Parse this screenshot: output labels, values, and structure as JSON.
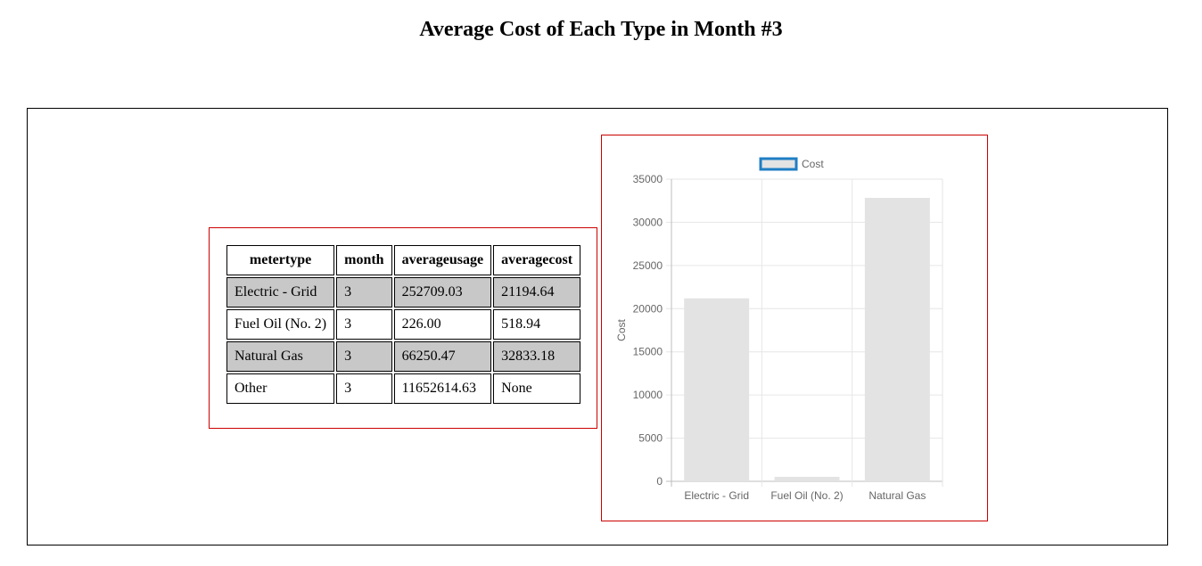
{
  "page": {
    "title": "Average Cost of Each Type in Month #3"
  },
  "table": {
    "columns": [
      "metertype",
      "month",
      "averageusage",
      "averagecost"
    ],
    "rows": [
      [
        "Electric - Grid",
        "3",
        "252709.03",
        "21194.64"
      ],
      [
        "Fuel Oil (No. 2)",
        "3",
        "226.00",
        "518.94"
      ],
      [
        "Natural Gas",
        "3",
        "66250.47",
        "32833.18"
      ],
      [
        "Other",
        "3",
        "11652614.63",
        "None"
      ]
    ]
  },
  "chart_data": {
    "type": "bar",
    "categories": [
      "Electric - Grid",
      "Fuel Oil (No. 2)",
      "Natural Gas"
    ],
    "series": [
      {
        "name": "Cost",
        "values": [
          21194.64,
          518.94,
          32833.18
        ]
      }
    ],
    "xlabel": "",
    "ylabel": "Cost",
    "ylim": [
      0,
      35000
    ],
    "yticks": [
      0,
      5000,
      10000,
      15000,
      20000,
      25000,
      30000,
      35000
    ],
    "grid": true,
    "legend_position": "top",
    "colors": {
      "bar_fill": "#e3e3e3",
      "legend_swatch_fill": "#e3e3e3",
      "legend_swatch_border": "#1f7ec4",
      "grid": "#e6e6e6",
      "tick_text": "#666666"
    }
  }
}
